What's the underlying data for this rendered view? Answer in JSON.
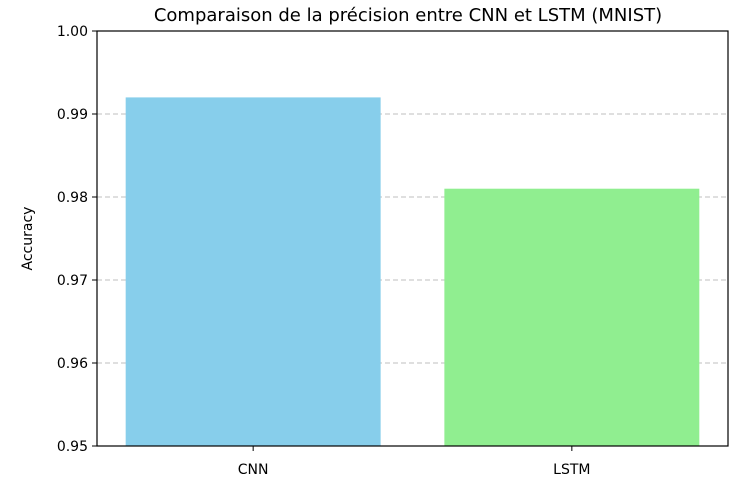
{
  "chart_data": {
    "type": "bar",
    "title": "Comparaison de la précision entre CNN et LSTM (MNIST)",
    "xlabel": "",
    "ylabel": "Accuracy",
    "categories": [
      "CNN",
      "LSTM"
    ],
    "values": [
      0.992,
      0.981
    ],
    "colors": [
      "#87CEEB",
      "#90EE90"
    ],
    "ylim": [
      0.95,
      1.0
    ],
    "yticks": [
      0.95,
      0.96,
      0.97,
      0.98,
      0.99,
      1.0
    ],
    "ytick_labels": [
      "0.95",
      "0.96",
      "0.97",
      "0.98",
      "0.99",
      "1.00"
    ],
    "grid": "y-dashed",
    "legend": "none"
  }
}
